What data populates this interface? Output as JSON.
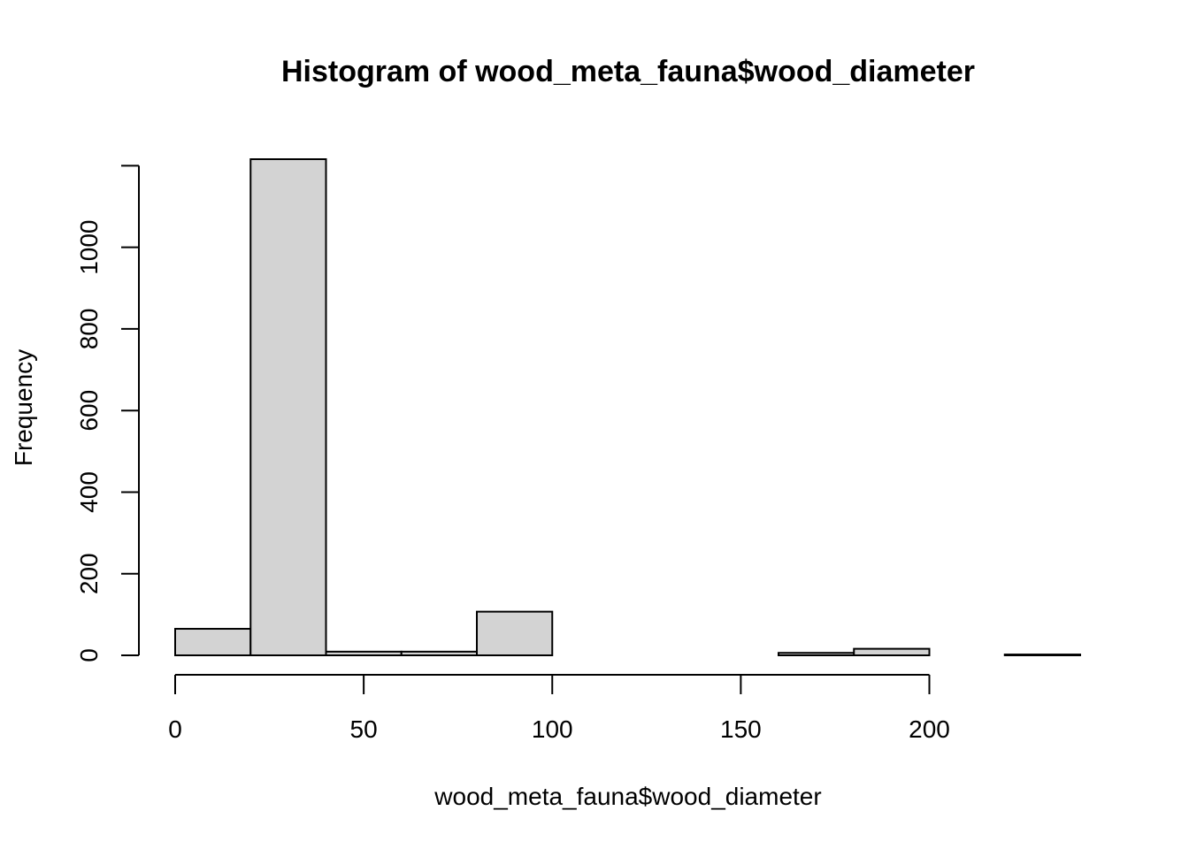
{
  "chart_data": {
    "type": "bar",
    "title": "Histogram of wood_meta_fauna$wood_diameter",
    "xlabel": "wood_meta_fauna$wood_diameter",
    "ylabel": "Frequency",
    "bins": [
      {
        "start": 0,
        "end": 20,
        "count": 65
      },
      {
        "start": 20,
        "end": 40,
        "count": 1216
      },
      {
        "start": 40,
        "end": 60,
        "count": 9
      },
      {
        "start": 60,
        "end": 80,
        "count": 9
      },
      {
        "start": 80,
        "end": 100,
        "count": 107
      },
      {
        "start": 100,
        "end": 120,
        "count": 0
      },
      {
        "start": 120,
        "end": 140,
        "count": 0
      },
      {
        "start": 140,
        "end": 160,
        "count": 0
      },
      {
        "start": 160,
        "end": 180,
        "count": 6
      },
      {
        "start": 180,
        "end": 200,
        "count": 16
      },
      {
        "start": 200,
        "end": 220,
        "count": 0
      },
      {
        "start": 220,
        "end": 240,
        "count": 2
      }
    ],
    "xlim": [
      0,
      240
    ],
    "ylim": [
      0,
      1216
    ],
    "xticks": [
      0,
      50,
      100,
      150,
      200
    ],
    "yticks": [
      0,
      200,
      400,
      600,
      800,
      1000
    ],
    "bar_fill": "#d3d3d3",
    "bar_stroke": "#000000",
    "grid": false,
    "legend": "none"
  }
}
